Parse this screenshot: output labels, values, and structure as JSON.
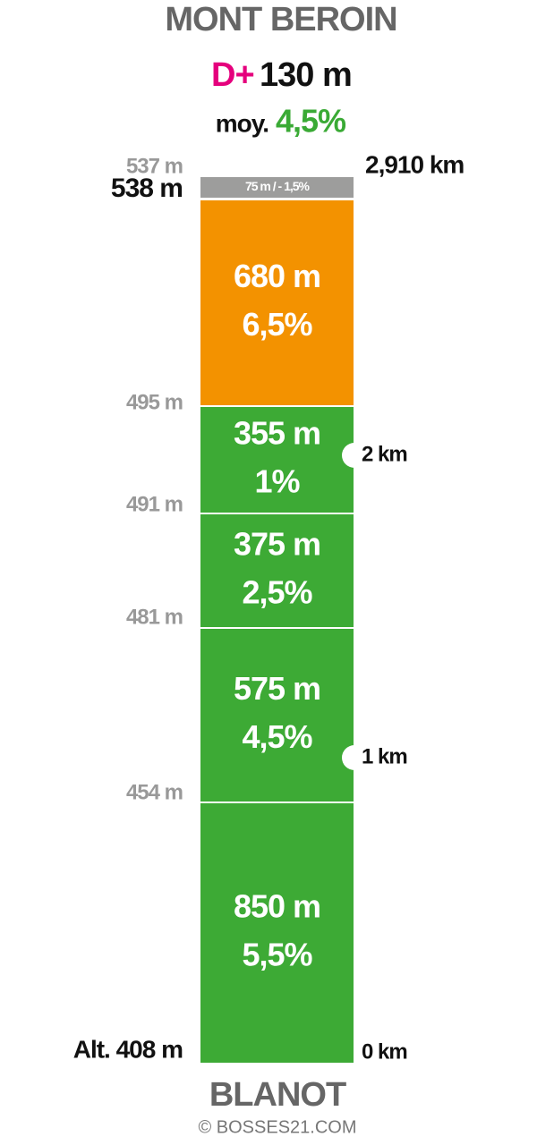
{
  "header": {
    "title": "MONT BEROIN",
    "gain_label": "D+",
    "gain": "130 m",
    "average_label": "moy.",
    "average": "4,5%",
    "gain_label_color": "#e5007d",
    "average_color": "#3aaa35"
  },
  "summit": {
    "altitude": "538 m",
    "distance": "2,910 km"
  },
  "segments": [
    {
      "label": "75 m / - 1,5%",
      "color": "#9d9d9c"
    },
    {
      "length": "680 m",
      "grade": "6,5%",
      "color": "#f39200"
    },
    {
      "length": "355 m",
      "grade": "1%",
      "color": "#3daa35"
    },
    {
      "length": "375 m",
      "grade": "2,5%",
      "color": "#3daa35"
    },
    {
      "length": "575 m",
      "grade": "4,5%",
      "color": "#3daa35"
    },
    {
      "length": "850 m",
      "grade": "5,5%",
      "color": "#3daa35"
    }
  ],
  "altitudes": [
    "537 m",
    "495 m",
    "491 m",
    "481 m",
    "454 m"
  ],
  "km_markers": [
    "2 km",
    "1 km"
  ],
  "start": {
    "altitude": "Alt. 408 m",
    "distance": "0 km",
    "name": "BLANOT"
  },
  "footer": "© BOSSES21.COM"
}
